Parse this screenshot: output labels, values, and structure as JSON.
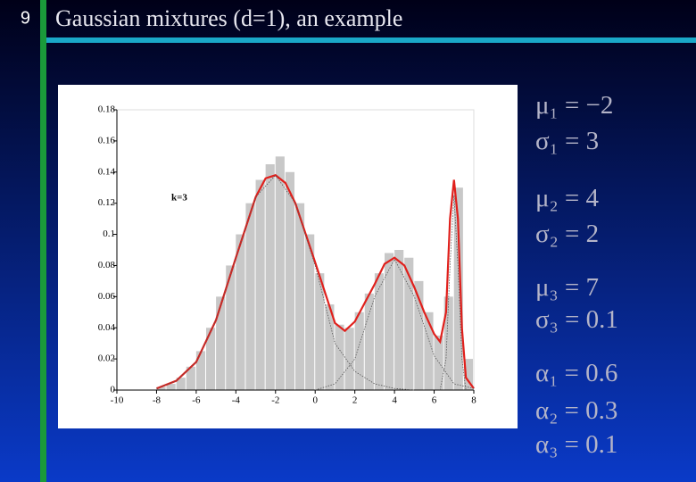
{
  "slide": {
    "number": "9",
    "title": "Gaussian mixtures (d=1), an example",
    "parameters": [
      "μ₁ = −2",
      "σ₁ = 3",
      "μ₂ = 4",
      "σ₂ = 2",
      "μ₃ = 7",
      "σ₃ = 0.1",
      "α₁ = 0.6",
      "α₂ = 0.3",
      "α₃ = 0.1"
    ]
  },
  "chart_data": {
    "type": "histogram",
    "annotation": "k=3",
    "bins": [
      -8,
      -7.5,
      -7,
      -6.5,
      -6,
      -5.5,
      -5,
      -4.5,
      -4,
      -3.5,
      -3,
      -2.5,
      -2,
      -1.5,
      -1,
      -0.5,
      0,
      0.5,
      1,
      1.5,
      2,
      2.5,
      3,
      3.5,
      4,
      4.5,
      5,
      5.5,
      6,
      6.5,
      7,
      7.5,
      8
    ],
    "values": [
      0.002,
      0.004,
      0.008,
      0.015,
      0.025,
      0.04,
      0.06,
      0.08,
      0.1,
      0.12,
      0.135,
      0.145,
      0.15,
      0.14,
      0.12,
      0.1,
      0.075,
      0.055,
      0.042,
      0.04,
      0.05,
      0.062,
      0.075,
      0.088,
      0.09,
      0.085,
      0.07,
      0.05,
      0.035,
      0.06,
      0.13,
      0.02
    ],
    "color": "#c8c8c8",
    "series": [
      {
        "color": "#e0201c",
        "style": "solid",
        "x": [
          -8,
          -7,
          -6,
          -5,
          -4,
          -3,
          -2.5,
          -2,
          -1.5,
          -1,
          0,
          1,
          1.5,
          2,
          3,
          3.5,
          4,
          4.5,
          5,
          5.5,
          6,
          6.3,
          6.6,
          6.8,
          7,
          7.2,
          7.4,
          7.6,
          8
        ],
        "values": [
          0.001,
          0.006,
          0.018,
          0.045,
          0.085,
          0.124,
          0.136,
          0.138,
          0.133,
          0.12,
          0.082,
          0.043,
          0.038,
          0.044,
          0.068,
          0.081,
          0.085,
          0.08,
          0.066,
          0.05,
          0.036,
          0.031,
          0.05,
          0.11,
          0.135,
          0.11,
          0.04,
          0.008,
          0.001
        ]
      },
      {
        "color": "#555555",
        "style": "dotted",
        "x": [
          -8,
          -7,
          -6,
          -5,
          -4,
          -3,
          -2,
          -1,
          0,
          1,
          2,
          3,
          4,
          5
        ],
        "values": [
          0.001,
          0.006,
          0.018,
          0.045,
          0.085,
          0.124,
          0.138,
          0.12,
          0.08,
          0.03,
          0.012,
          0.004,
          0.001,
          0
        ]
      },
      {
        "color": "#555555",
        "style": "dotted",
        "x": [
          0,
          1,
          2,
          3,
          4,
          5,
          6,
          7,
          8
        ],
        "values": [
          0,
          0.004,
          0.02,
          0.06,
          0.084,
          0.06,
          0.022,
          0.004,
          0.001
        ]
      },
      {
        "color": "#555555",
        "style": "dotted",
        "x": [
          6.3,
          6.6,
          6.8,
          7,
          7.2,
          7.4,
          7.6
        ],
        "values": [
          0,
          0.02,
          0.08,
          0.125,
          0.08,
          0.02,
          0
        ]
      }
    ],
    "xlim": [
      -10,
      8
    ],
    "xticks": [
      -10,
      -8,
      -6,
      -4,
      -2,
      0,
      2,
      4,
      6,
      8
    ],
    "ylim": [
      0,
      0.18
    ],
    "yticks": [
      0,
      0.02,
      0.04,
      0.06,
      0.08,
      0.1,
      0.12,
      0.14,
      0.16,
      0.18
    ]
  }
}
